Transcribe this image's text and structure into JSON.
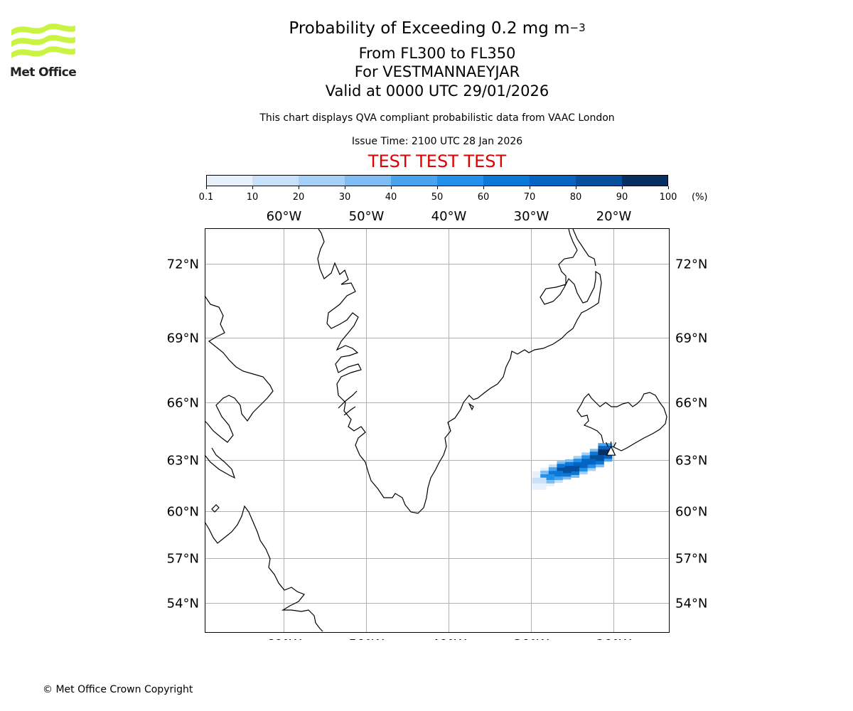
{
  "header": {
    "logo_text": "Met Office",
    "title_main": "Probability of Exceeding 0.2 mg m",
    "title_exponent": "−3",
    "levels": "From FL300 to FL350",
    "location": "For VESTMANNAEYJAR",
    "valid": "Valid at 0000 UTC 29/01/2026",
    "description": "This chart displays QVA compliant probabilistic data from VAAC London",
    "issue_time": "Issue Time: 2100 UTC 28 Jan 2026",
    "test_banner": "TEST TEST TEST"
  },
  "colorbar": {
    "ticks": [
      "0.1",
      "10",
      "20",
      "30",
      "40",
      "50",
      "60",
      "70",
      "80",
      "90",
      "100"
    ],
    "unit": "(%)",
    "colors": [
      "#e6f1fc",
      "#c8e1f8",
      "#a6cff5",
      "#7ebcf2",
      "#4aa3ef",
      "#2291ec",
      "#0a78d8",
      "#0564c2",
      "#054f9c",
      "#062f62"
    ]
  },
  "chart_data": {
    "type": "heatmap",
    "title": "Probability of Exceeding 0.2 mg m−3",
    "lon_ticks": [
      "60°W",
      "50°W",
      "40°W",
      "30°W",
      "20°W"
    ],
    "lat_ticks": [
      "72°N",
      "69°N",
      "66°N",
      "63°N",
      "60°N",
      "57°N",
      "54°N"
    ],
    "lon_range": [
      -69.5,
      -13
    ],
    "lat_range": [
      52,
      73.5
    ],
    "plume_cells": [
      {
        "lon": -21,
        "lat": 63.4,
        "p": 95
      },
      {
        "lon": -22,
        "lat": 63.1,
        "p": 85
      },
      {
        "lon": -23,
        "lat": 62.9,
        "p": 75
      },
      {
        "lon": -24,
        "lat": 62.7,
        "p": 75
      },
      {
        "lon": -25,
        "lat": 62.5,
        "p": 85
      },
      {
        "lon": -26,
        "lat": 62.4,
        "p": 85
      },
      {
        "lon": -27,
        "lat": 62.2,
        "p": 65
      },
      {
        "lon": -28,
        "lat": 62.0,
        "p": 55
      },
      {
        "lon": -29,
        "lat": 61.8,
        "p": 15
      }
    ],
    "source_marker": {
      "name": "VESTMANNAEYJAR",
      "lon": -20.3,
      "lat": 63.4
    }
  },
  "footer": {
    "copyright": "© Met Office Crown Copyright"
  }
}
